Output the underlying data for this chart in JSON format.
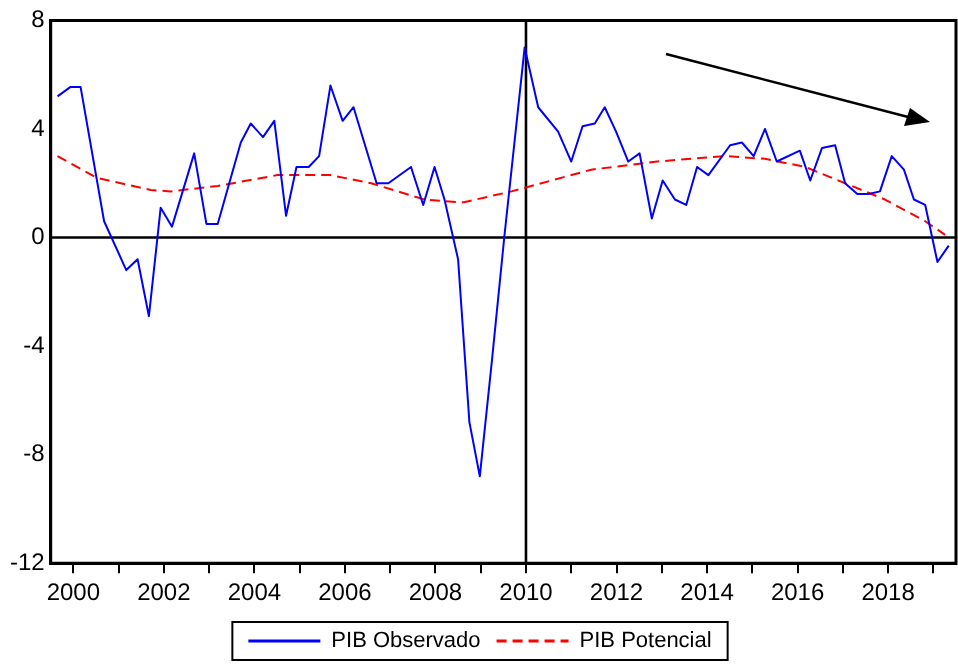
{
  "chart_data": {
    "type": "line",
    "xlim": [
      1999.5,
      2019.5
    ],
    "xticks": [
      2000,
      {
        "value": 2001,
        "label": null
      },
      2002,
      {
        "value": 2003,
        "label": null
      },
      2004,
      {
        "value": 2005,
        "label": null
      },
      2006,
      {
        "value": 2007,
        "label": null
      },
      2008,
      {
        "value": 2009,
        "label": null
      },
      2010,
      {
        "value": 2011,
        "label": null
      },
      2012,
      {
        "value": 2013,
        "label": null
      },
      2014,
      {
        "value": 2015,
        "label": null
      },
      2016,
      {
        "value": 2017,
        "label": null
      },
      2018,
      {
        "value": 2019,
        "label": null
      }
    ],
    "ylim": [
      -12,
      8
    ],
    "yticks": [
      -12,
      -8,
      -4,
      0,
      4,
      8
    ],
    "grid": false,
    "legend": "bottom",
    "marker": "none",
    "ref_lines": [
      {
        "axis": "x",
        "value": 2010,
        "color": "#000000"
      },
      {
        "axis": "y",
        "value": 0,
        "color": "#000000"
      }
    ],
    "series": [
      {
        "name": "PIB Observado",
        "color": "#0000ff",
        "line_style": "solid",
        "x": [
          1999.65,
          1999.94,
          2000.16,
          2000.68,
          2001.17,
          2001.42,
          2001.67,
          2001.93,
          2002.18,
          2002.67,
          2002.94,
          2003.19,
          2003.7,
          2003.92,
          2004.19,
          2004.44,
          2004.7,
          2004.93,
          2005.2,
          2005.43,
          2005.68,
          2005.95,
          2006.19,
          2006.7,
          2006.96,
          2007.46,
          2007.73,
          2007.98,
          2008.2,
          2008.5,
          2008.75,
          2008.98,
          2009.25,
          2009.52,
          2009.97,
          2010.27,
          2010.71,
          2011.0,
          2011.25,
          2011.52,
          2011.74,
          2011.99,
          2012.26,
          2012.51,
          2012.78,
          2013.02,
          2013.29,
          2013.54,
          2013.78,
          2014.03,
          2014.51,
          2014.77,
          2015.03,
          2015.28,
          2015.54,
          2016.05,
          2016.28,
          2016.54,
          2016.83,
          2017.05,
          2017.32,
          2017.57,
          2017.82,
          2018.08,
          2018.35,
          2018.57,
          2018.82,
          2019.09,
          2019.34
        ],
        "values": [
          5.2,
          5.55,
          5.55,
          0.6,
          -1.2,
          -0.8,
          -2.9,
          1.1,
          0.4,
          3.1,
          0.5,
          0.5,
          3.5,
          4.2,
          3.7,
          4.3,
          0.8,
          2.6,
          2.6,
          3.0,
          5.6,
          4.3,
          4.8,
          2.0,
          2.0,
          2.6,
          1.2,
          2.6,
          1.4,
          -0.8,
          -6.8,
          -8.8,
          -4.5,
          0.0,
          7.0,
          4.8,
          3.9,
          2.8,
          4.1,
          4.2,
          4.8,
          3.9,
          2.8,
          3.1,
          0.7,
          2.1,
          1.4,
          1.2,
          2.6,
          2.3,
          3.4,
          3.5,
          3.0,
          4.0,
          2.8,
          3.2,
          2.1,
          3.3,
          3.4,
          2.0,
          1.6,
          1.6,
          1.7,
          3.0,
          2.5,
          1.4,
          1.2,
          -0.9,
          -0.3
        ]
      },
      {
        "name": "PIB Potencial",
        "color": "#ff0000",
        "line_style": "dashed",
        "x": [
          1999.65,
          2000.52,
          2001.71,
          2002.15,
          2003.19,
          2004.51,
          2005.68,
          2006.58,
          2007.76,
          2008.5,
          2008.63,
          2009.68,
          2011.44,
          2012.9,
          2014.4,
          2015.28,
          2016.17,
          2017.05,
          2017.93,
          2018.82,
          2019.26
        ],
        "values": [
          3.0,
          2.2,
          1.75,
          1.7,
          1.9,
          2.3,
          2.3,
          2.0,
          1.4,
          1.3,
          1.3,
          1.7,
          2.5,
          2.8,
          3.0,
          2.9,
          2.6,
          2.0,
          1.4,
          0.6,
          0.1
        ]
      }
    ]
  }
}
